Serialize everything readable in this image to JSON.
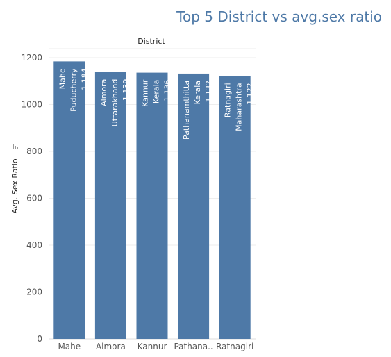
{
  "chart_data": {
    "type": "bar",
    "title": "Top 5 District vs avg.sex ratio",
    "header_label": "District",
    "ylabel": "Avg. Sex Ratio",
    "ylim": [
      0,
      1200
    ],
    "yticks": [
      0,
      200,
      400,
      600,
      800,
      1000,
      1200
    ],
    "yticks_labels": [
      "0",
      "200",
      "400",
      "600",
      "800",
      "1000",
      "1200"
    ],
    "categories": [
      "Mahe",
      "Almora",
      "Kannur",
      "Pathanamthitta",
      "Ratnagiri"
    ],
    "category_tick_labels": [
      "Mahe",
      "Almora",
      "Kannur",
      "Pathana..",
      "Ratnagiri"
    ],
    "states": [
      "Puducherry",
      "Uttarakhand",
      "Kerala",
      "Kerala",
      "Maharashtra"
    ],
    "values": [
      1184,
      1139,
      1136,
      1132,
      1122
    ],
    "value_labels": [
      "1,184",
      "1,139",
      "1,136",
      "1,132",
      "1,122"
    ],
    "bar_color": "#4e79a7",
    "title_color": "#4e79a7",
    "grid": true,
    "sort_icon": "sort-icon"
  }
}
